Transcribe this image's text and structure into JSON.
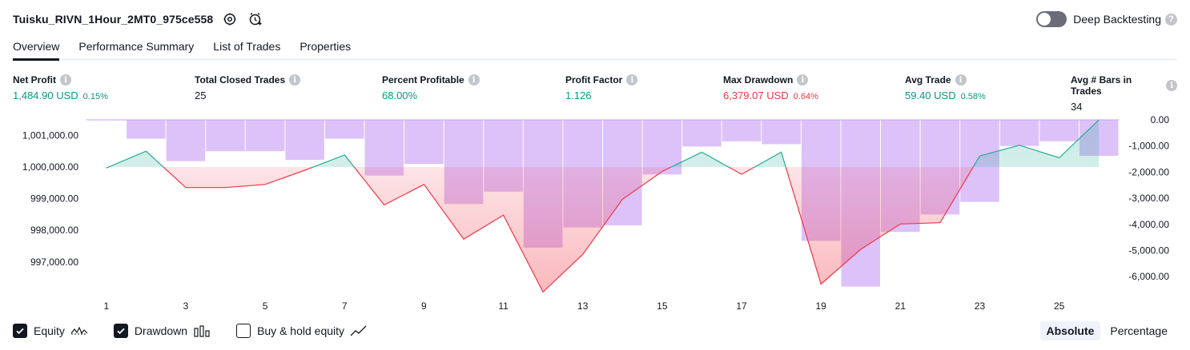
{
  "header": {
    "title": "Tuisku_RIVN_1Hour_2MT0_975ce558",
    "deep_backtesting_label": "Deep Backtesting",
    "deep_backtesting_on": false,
    "help_glyph": "?"
  },
  "tabs": [
    {
      "label": "Overview",
      "active": true
    },
    {
      "label": "Performance Summary",
      "active": false
    },
    {
      "label": "List of Trades",
      "active": false
    },
    {
      "label": "Properties",
      "active": false
    }
  ],
  "metrics": [
    {
      "label": "Net Profit",
      "value": "1,484.90 USD",
      "pct": "0.15%",
      "color": "green"
    },
    {
      "label": "Total Closed Trades",
      "value": "25",
      "pct": "",
      "color": "dark"
    },
    {
      "label": "Percent Profitable",
      "value": "68.00%",
      "pct": "",
      "color": "green"
    },
    {
      "label": "Profit Factor",
      "value": "1.126",
      "pct": "",
      "color": "green"
    },
    {
      "label": "Max Drawdown",
      "value": "6,379.07 USD",
      "pct": "0.64%",
      "color": "red"
    },
    {
      "label": "Avg Trade",
      "value": "59.40 USD",
      "pct": "0.58%",
      "color": "green"
    },
    {
      "label": "Avg # Bars in Trades",
      "value": "34",
      "pct": "",
      "color": "dark"
    }
  ],
  "info_glyph": "i",
  "chart_data": {
    "type": "line",
    "x": [
      1,
      2,
      3,
      4,
      5,
      6,
      7,
      8,
      9,
      10,
      11,
      12,
      13,
      14,
      15,
      16,
      17,
      18,
      19,
      20,
      21,
      22,
      23,
      24,
      25,
      26
    ],
    "x_tick_labels": [
      "1",
      "3",
      "5",
      "7",
      "9",
      "11",
      "13",
      "15",
      "17",
      "19",
      "21",
      "23",
      "25"
    ],
    "equity_baseline": 1000000,
    "left_axis": {
      "ticks": [
        "1,001,000.00",
        "1,000,000.00",
        "999,000.00",
        "998,000.00",
        "997,000.00"
      ],
      "tick_values": [
        1001000,
        1000000,
        999000,
        998000,
        997000
      ]
    },
    "right_axis": {
      "ticks": [
        "0.00",
        "-1,000.00",
        "-2,000.00",
        "-3,000.00",
        "-4,000.00",
        "-5,000.00",
        "-6,000.00"
      ],
      "tick_values": [
        0,
        -1000,
        -2000,
        -3000,
        -4000,
        -5000,
        -6000
      ]
    },
    "series": [
      {
        "name": "Equity",
        "axis": "left",
        "values": [
          999970,
          1000500,
          999350,
          999350,
          999450,
          999900,
          1000380,
          998800,
          999450,
          997720,
          998480,
          996050,
          997240,
          998980,
          999860,
          1000470,
          999770,
          1000470,
          996300,
          997400,
          998200,
          998240,
          1000350,
          1000690,
          1000290,
          1001490
        ]
      },
      {
        "name": "Drawdown",
        "axis": "right",
        "type": "bar",
        "values": [
          0,
          -720,
          -1580,
          -1200,
          -1200,
          -1530,
          -720,
          -2130,
          -1690,
          -3220,
          -2750,
          -4890,
          -4120,
          -4040,
          -2090,
          -1020,
          -820,
          -930,
          -4630,
          -6380,
          -4290,
          -3620,
          -3140,
          -1000,
          -820,
          -1380
        ]
      }
    ],
    "legend": [
      "Equity",
      "Drawdown",
      "Buy & hold equity"
    ]
  },
  "legend": {
    "equity": {
      "label": "Equity",
      "checked": true
    },
    "drawdown": {
      "label": "Drawdown",
      "checked": true
    },
    "buyhold": {
      "label": "Buy & hold equity",
      "checked": false
    }
  },
  "mode": {
    "absolute": "Absolute",
    "percentage": "Percentage",
    "selected": "absolute"
  },
  "colors": {
    "equity_up": "#22ab94",
    "equity_down": "#f23645",
    "drawdown_bar": "#c89cf6",
    "green_text": "#089981",
    "red_text": "#f23645"
  }
}
